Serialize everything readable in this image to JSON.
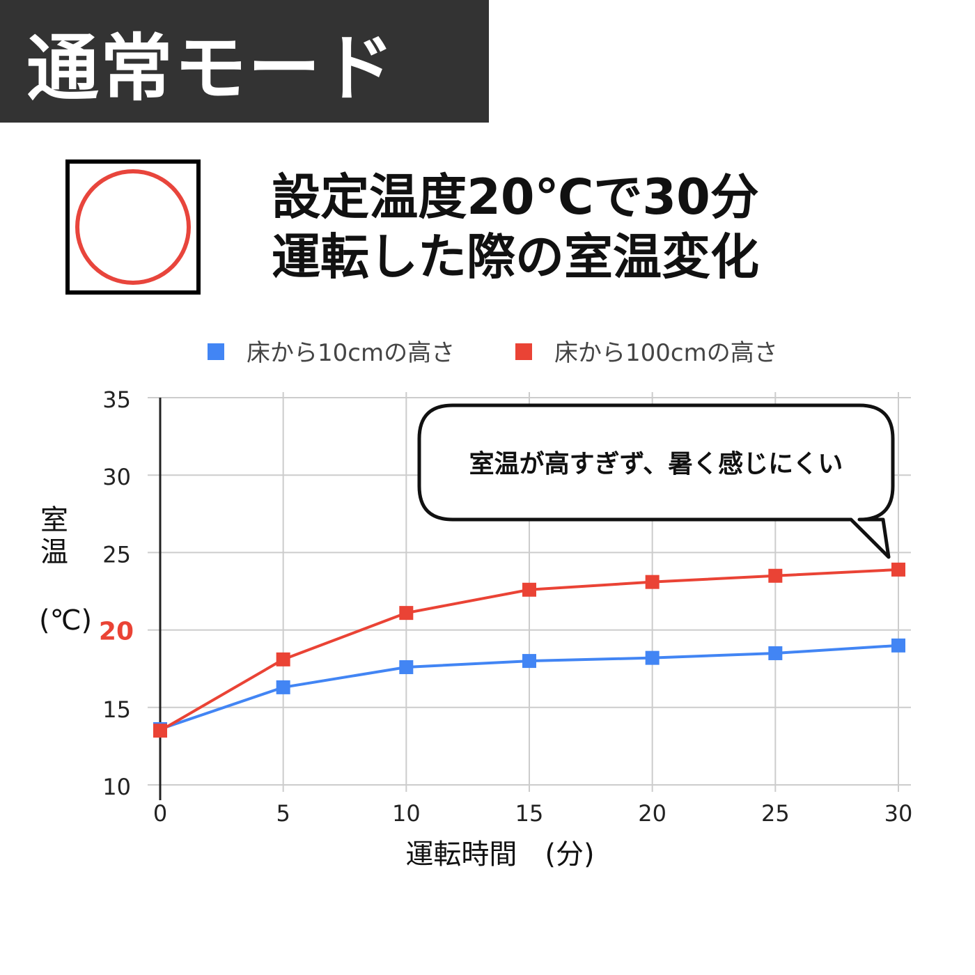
{
  "mode_label": "通常モード",
  "headline": {
    "line1": "設定温度20℃で30分",
    "line2": "運転した際の室温変化"
  },
  "mark_symbol": "circle",
  "colors": {
    "banner_bg": "#333333",
    "series_floor10": "#4285f4",
    "series_floor100": "#ea4335",
    "highlight_tick": "#ea4335",
    "circle_mark": "#e8453c"
  },
  "chart_data": {
    "type": "line",
    "legend_position": "top",
    "xlabel": "運転時間　(分)",
    "ylabel_chars": [
      "室",
      "温"
    ],
    "ylabel_unit": "(℃)",
    "x": [
      0,
      5,
      10,
      15,
      20,
      25,
      30
    ],
    "xlim": [
      0,
      30
    ],
    "ylim": [
      10,
      35
    ],
    "yticks": [
      10,
      15,
      20,
      25,
      30,
      35
    ],
    "highlight_ytick": 20,
    "grid": true,
    "series": [
      {
        "name": "床から10cmの高さ",
        "color": "#4285f4",
        "values": [
          13.6,
          16.3,
          17.6,
          18.0,
          18.2,
          18.5,
          19.0
        ]
      },
      {
        "name": "床から100cmの高さ",
        "color": "#ea4335",
        "values": [
          13.5,
          18.1,
          21.1,
          22.6,
          23.1,
          23.5,
          23.9
        ]
      }
    ],
    "annotation": {
      "text": "室温が高すぎず、暑く感じにくい",
      "anchor_x": 30,
      "anchor_series": 1
    }
  }
}
